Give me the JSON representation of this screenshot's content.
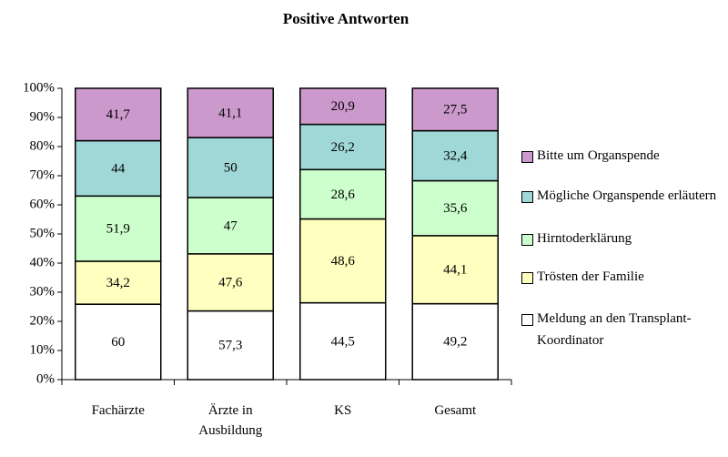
{
  "chart_data": {
    "type": "stacked100",
    "title": "Positive Antworten",
    "categories": [
      "Fachärzte",
      "Ärzte in Ausbildung",
      "KS",
      "Gesamt"
    ],
    "series": [
      {
        "name": "Meldung an den Transplant-Koordinator",
        "color": "#ffffff",
        "values": [
          60,
          57.3,
          44.5,
          49.2
        ],
        "value_labels": [
          "60",
          "57,3",
          "44,5",
          "49,2"
        ]
      },
      {
        "name": "Trösten der Familie",
        "color": "#ffffc0",
        "values": [
          34.2,
          47.6,
          48.6,
          44.1
        ],
        "value_labels": [
          "34,2",
          "47,6",
          "48,6",
          "44,1"
        ]
      },
      {
        "name": "Hirntoderklärung",
        "color": "#ccffcc",
        "values": [
          51.9,
          47,
          28.6,
          35.6
        ],
        "value_labels": [
          "51,9",
          "47",
          "28,6",
          "35,6"
        ]
      },
      {
        "name": "Mögliche Organspende erläutern",
        "color": "#a0d8d8",
        "values": [
          44,
          50,
          26.2,
          32.4
        ],
        "value_labels": [
          "44",
          "50",
          "26,2",
          "32,4"
        ]
      },
      {
        "name": "Bitte um Organspende",
        "color": "#cc99cc",
        "values": [
          41.7,
          41.1,
          20.9,
          27.5
        ],
        "value_labels": [
          "41,7",
          "41,1",
          "20,9",
          "27,5"
        ]
      }
    ],
    "ylim": [
      0,
      100
    ],
    "yticks": [
      {
        "value": 0,
        "label": "0%"
      },
      {
        "value": 10,
        "label": "10%"
      },
      {
        "value": 20,
        "label": "20%"
      },
      {
        "value": 30,
        "label": "30%"
      },
      {
        "value": 40,
        "label": "40%"
      },
      {
        "value": 50,
        "label": "50%"
      },
      {
        "value": 60,
        "label": "60%"
      },
      {
        "value": 70,
        "label": "70%"
      },
      {
        "value": 80,
        "label": "80%"
      },
      {
        "value": 90,
        "label": "90%"
      },
      {
        "value": 100,
        "label": "100%"
      }
    ],
    "legend": "right"
  }
}
